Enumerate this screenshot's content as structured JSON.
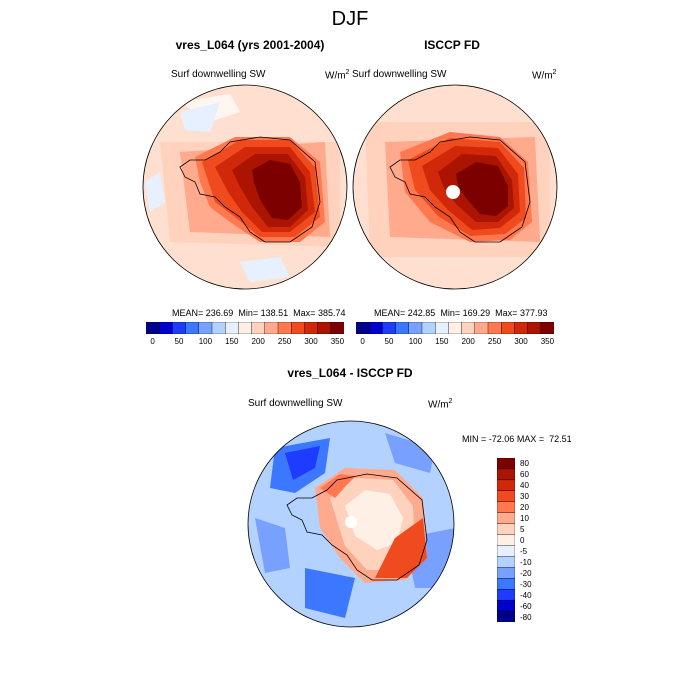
{
  "page": {
    "title": "DJF"
  },
  "colors": {
    "abs_scale": [
      "#00008B",
      "#0000CD",
      "#1E3CFF",
      "#3C78FF",
      "#78A0FF",
      "#B4D2FF",
      "#E6F0FF",
      "#FFF0E6",
      "#FFD2BE",
      "#FFAA8C",
      "#FF7850",
      "#F04B1E",
      "#D2280A",
      "#AA1400",
      "#7D0000"
    ],
    "diff_scale": [
      "#00008B",
      "#0000CD",
      "#1E3CFF",
      "#3C78FF",
      "#78A0FF",
      "#B4D2FF",
      "#E6F0FF",
      "#FFF0E6",
      "#FFD2BE",
      "#FFAA8C",
      "#FF7850",
      "#F04B1E",
      "#D2280A",
      "#AA1400",
      "#7D0000"
    ],
    "coast": "#000000"
  },
  "chart_data": [
    {
      "type": "heatmap",
      "title": "vres_L064 (yrs 2001-2004)",
      "variable": "Surf downwelling SW",
      "units_base": "W/m",
      "units_exp": "2",
      "stats": {
        "mean_label": "MEAN=",
        "mean": "236.69",
        "min_label": "Min=",
        "min": "138.51",
        "max_label": "Max=",
        "max": "385.74"
      },
      "levels": [
        "0",
        "50",
        "100",
        "150",
        "200",
        "250",
        "300",
        "350"
      ],
      "polar_region": "Antarctica",
      "missing_pole": false
    },
    {
      "type": "heatmap",
      "title": "ISCCP FD",
      "variable": "Surf downwelling SW",
      "units_base": "W/m",
      "units_exp": "2",
      "stats": {
        "mean_label": "MEAN=",
        "mean": "242.85",
        "min_label": "Min=",
        "min": "169.29",
        "max_label": "Max=",
        "max": "377.93"
      },
      "levels": [
        "0",
        "50",
        "100",
        "150",
        "200",
        "250",
        "300",
        "350"
      ],
      "polar_region": "Antarctica",
      "missing_pole": true
    },
    {
      "type": "heatmap",
      "title": "vres_L064 - ISCCP FD",
      "variable": "Surf downwelling SW",
      "units_base": "W/m",
      "units_exp": "2",
      "stats": {
        "min_label": "MIN =",
        "min": "-72.06",
        "max_label": "MAX =",
        "max": "72.51"
      },
      "levels": [
        "80",
        "60",
        "40",
        "30",
        "20",
        "10",
        "5",
        "0",
        "-5",
        "-10",
        "-20",
        "-30",
        "-40",
        "-60",
        "-80"
      ],
      "polar_region": "Antarctica",
      "missing_pole": true
    }
  ]
}
